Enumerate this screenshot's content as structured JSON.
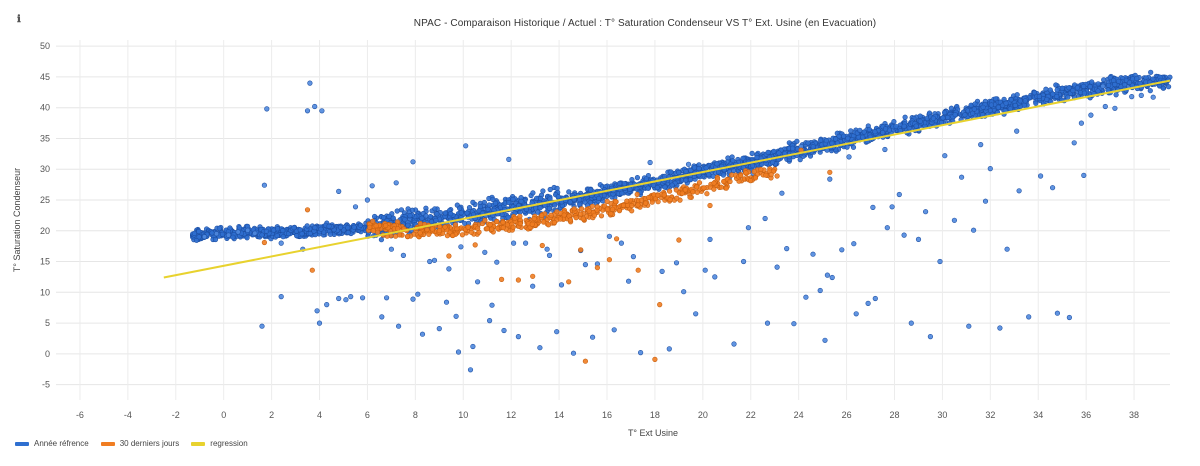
{
  "info_icon": "ℹ",
  "chart_data": {
    "type": "scatter",
    "title": "NPAC - Comparaison Historique / Actuel : T° Saturation Condenseur VS T° Ext. Usine (en Evacuation)",
    "xlabel": "T° Ext Usine",
    "ylabel": "T° Saturation Condenseur",
    "xlim": [
      -7,
      39.5
    ],
    "ylim": [
      -7.5,
      51
    ],
    "xticks": [
      -6,
      -4,
      -2,
      0,
      2,
      4,
      6,
      8,
      10,
      12,
      14,
      16,
      18,
      20,
      22,
      24,
      26,
      28,
      30,
      32,
      34,
      36,
      38
    ],
    "yticks": [
      -5,
      0,
      5,
      10,
      15,
      20,
      25,
      30,
      35,
      40,
      45,
      50
    ],
    "grid": true,
    "legend_position": "bottom-left",
    "series": [
      {
        "name": "Année réfrence",
        "color": "#2f6fd0",
        "trend": {
          "x": [
            -2.5,
            -1,
            1,
            3,
            5,
            6,
            8,
            10,
            12,
            14,
            16,
            18,
            20,
            22,
            24,
            26,
            28,
            30,
            32,
            34,
            36,
            38,
            39.5
          ],
          "y": [
            19.2,
            19.4,
            19.7,
            19.9,
            20.3,
            20.6,
            21.5,
            22.4,
            23.6,
            24.8,
            26.2,
            27.8,
            29.5,
            31.2,
            33.0,
            34.8,
            36.6,
            38.4,
            40.0,
            41.6,
            43.0,
            44.2,
            44.6
          ]
        },
        "x": [
          1.6,
          1.7,
          1.8,
          3.5,
          3.6,
          3.8,
          4.1,
          3.3,
          10.1,
          11.9,
          2.4,
          7.9,
          6.2,
          7.2,
          4.8,
          5.5,
          6.0,
          2.4,
          3.9,
          4.0,
          4.3,
          4.8,
          5.3,
          5.8,
          6.6,
          7.3,
          7.9,
          8.3,
          9.0,
          9.7,
          10.4,
          11.1,
          11.7,
          12.3,
          13.2,
          13.9,
          14.6,
          15.4,
          16.3,
          17.4,
          18.6,
          19.7,
          21.3,
          22.7,
          23.8,
          25.1,
          26.4,
          27.2,
          28.7,
          29.5,
          31.1,
          32.4,
          33.6,
          34.8,
          35.3,
          9.8,
          10.3,
          11.2,
          12.9,
          14.1,
          15.6,
          16.9,
          18.3,
          19.2,
          20.5,
          21.7,
          23.1,
          24.3,
          25.4,
          26.9,
          28.4,
          29.9,
          31.3,
          32.7,
          34.1,
          35.5,
          36.8,
          37.9,
          38.3,
          24.9,
          25.2,
          25.8,
          26.3,
          27.7,
          29.0,
          30.5,
          31.8,
          33.2,
          34.6,
          35.9,
          36.7,
          20.3,
          21.9,
          22.6,
          23.5,
          24.6,
          27.9,
          29.3,
          30.8,
          32.0,
          7.0,
          8.6,
          9.4,
          10.9,
          12.6,
          13.5,
          14.9,
          16.1,
          17.1,
          18.9,
          20.1,
          12.1,
          13.6,
          15.1,
          16.6,
          5.1,
          6.8,
          8.1,
          9.3,
          10.6,
          11.4,
          7.5,
          8.8,
          9.9,
          27.1,
          28.2,
          25.3,
          22.1,
          17.8,
          19.4,
          21.1,
          23.3,
          24.1,
          26.1,
          27.6,
          30.1,
          31.6,
          33.1,
          35.8,
          36.2,
          37.2,
          38.8,
          -0.8,
          -0.3,
          0.2,
          0.6,
          1.0,
          1.3
        ],
        "y": [
          4.5,
          27.4,
          39.8,
          39.5,
          44.0,
          40.2,
          39.5,
          17.0,
          33.8,
          31.6,
          9.3,
          31.2,
          27.3,
          27.8,
          26.4,
          23.9,
          25.0,
          18.0,
          7.0,
          5.0,
          8.0,
          9.0,
          9.3,
          9.1,
          6.0,
          4.5,
          8.9,
          3.2,
          4.1,
          6.1,
          1.2,
          5.4,
          3.8,
          2.8,
          1.0,
          3.6,
          0.1,
          2.7,
          3.9,
          0.2,
          0.8,
          6.5,
          1.6,
          5.0,
          4.9,
          2.2,
          6.5,
          9.0,
          5.0,
          2.8,
          4.5,
          4.2,
          6.0,
          6.6,
          5.9,
          0.3,
          -2.6,
          7.9,
          11.0,
          11.2,
          14.6,
          11.8,
          13.4,
          10.1,
          12.5,
          15.0,
          14.1,
          9.2,
          12.4,
          8.2,
          19.3,
          15.0,
          20.1,
          17.0,
          28.9,
          34.3,
          40.2,
          41.8,
          42.0,
          10.3,
          12.8,
          16.9,
          17.9,
          20.5,
          18.6,
          21.7,
          24.8,
          26.5,
          27.0,
          29.0,
          43.5,
          18.6,
          20.5,
          22.0,
          17.1,
          16.2,
          23.9,
          23.1,
          28.7,
          30.1,
          17.0,
          15.0,
          13.8,
          16.5,
          18.0,
          17.0,
          16.8,
          19.1,
          15.8,
          14.8,
          13.6,
          18.0,
          16.0,
          14.5,
          18.0,
          8.8,
          9.1,
          9.7,
          8.4,
          11.7,
          14.9,
          16.0,
          15.2,
          17.4,
          23.8,
          25.9,
          28.4,
          29.3,
          31.1,
          30.8,
          28.5,
          26.1,
          33.7,
          32.0,
          33.2,
          32.2,
          34.0,
          36.2,
          37.5,
          38.8,
          39.9,
          41.7,
          19.0,
          19.5,
          19.3,
          19.8,
          20.1,
          19.6
        ]
      },
      {
        "name": "30 derniers jours",
        "color": "#f07d22",
        "trend": {
          "x": [
            6.0,
            8.0,
            10.0,
            12.0,
            14.0,
            16.0,
            18.0,
            20.0,
            22.0,
            23.0
          ],
          "y": [
            20.6,
            19.8,
            20.2,
            21.2,
            22.2,
            23.6,
            25.2,
            27.0,
            28.9,
            29.8
          ]
        },
        "x": [
          3.5,
          3.7,
          1.7,
          10.5,
          12.9,
          14.4,
          14.9,
          15.1,
          16.1,
          16.4,
          18.2,
          18.0,
          25.3,
          20.3,
          11.6,
          12.3,
          13.3,
          17.3,
          19.0,
          23.1,
          24.1,
          15.6,
          9.4
        ],
        "y": [
          23.4,
          13.6,
          18.1,
          17.7,
          12.6,
          11.7,
          16.9,
          -1.2,
          15.3,
          18.7,
          8.0,
          -0.9,
          29.5,
          24.1,
          12.1,
          12.0,
          17.6,
          13.6,
          18.5,
          28.9,
          33.1,
          14.0,
          15.9
        ]
      },
      {
        "name": "regression",
        "color": "#e8d22e",
        "x": [
          -2.5,
          39.5
        ],
        "y": [
          12.4,
          44.4
        ]
      }
    ]
  }
}
